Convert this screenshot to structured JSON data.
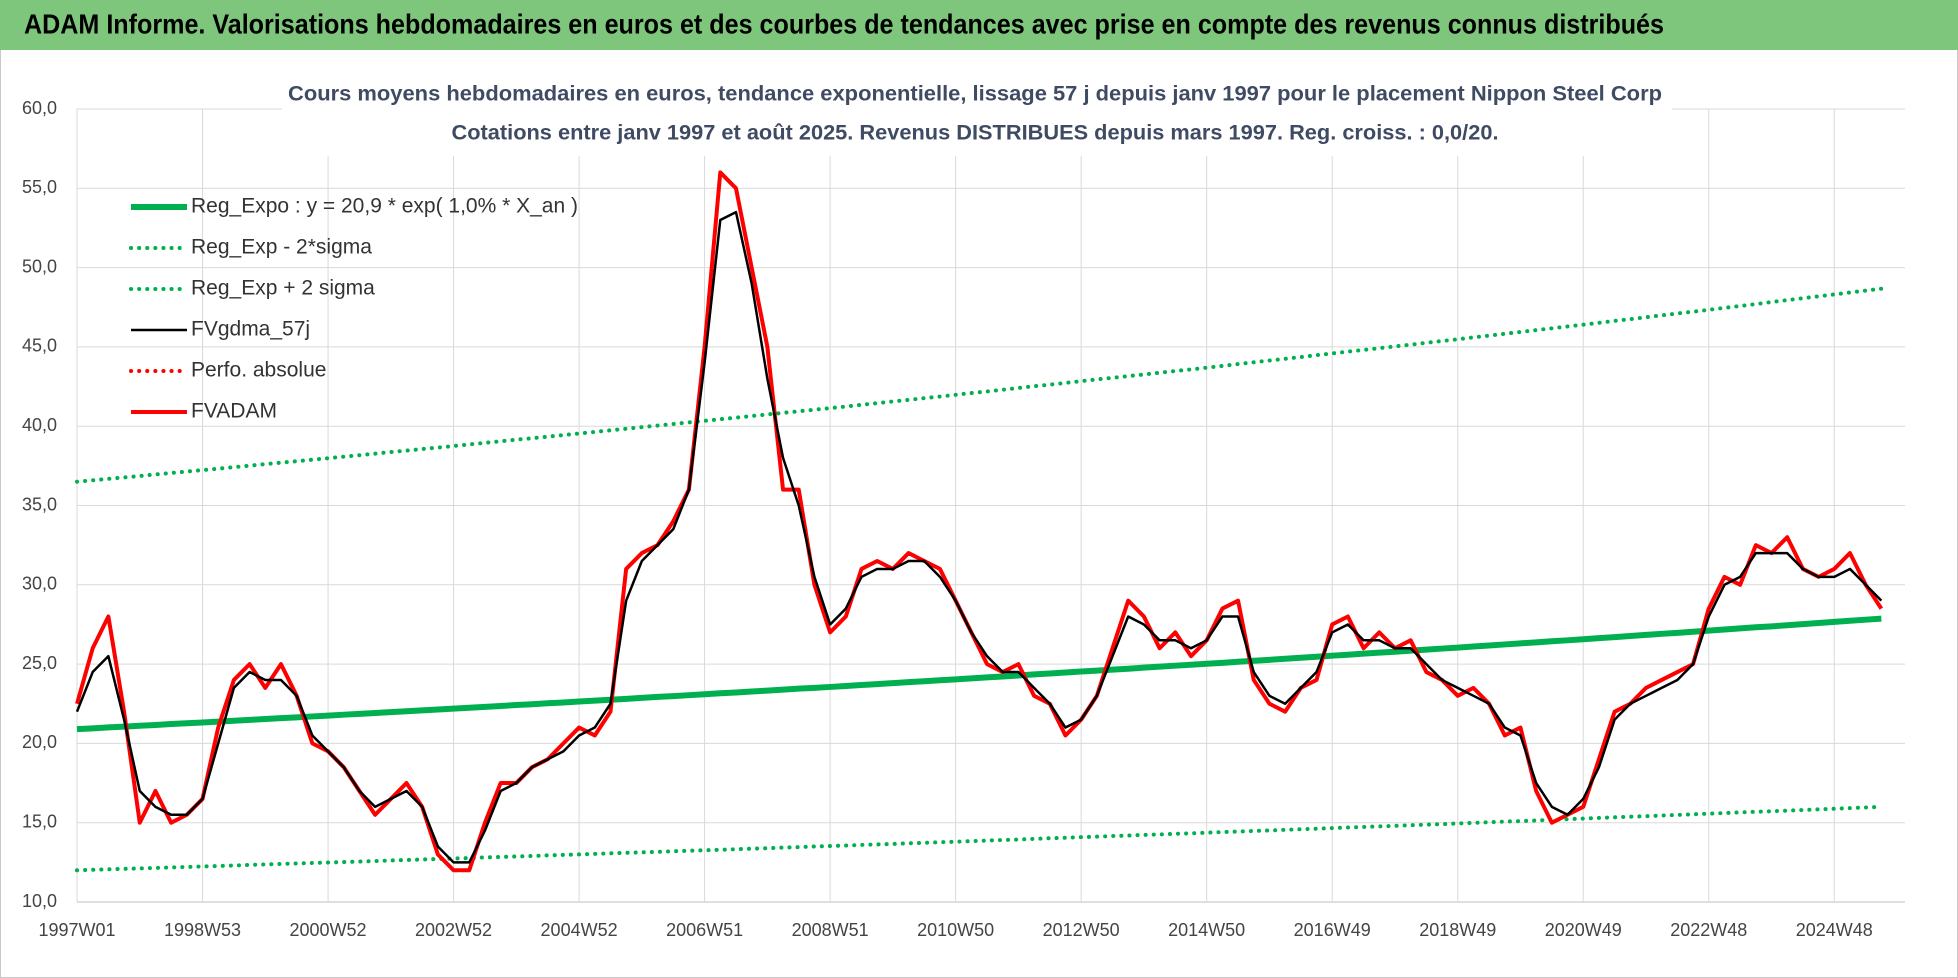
{
  "chart_data": {
    "type": "line",
    "header": "ADAM Informe. Valorisations hebdomadaires en euros et des courbes de tendances avec prise en compte des revenus connus distribués",
    "title": "Cours moyens hebdomadaires en euros, tendance exponentielle, lissage 57 j depuis janv 1997 pour le placement Nippon Steel Corp",
    "subtitle": "Cotations entre janv 1997 et août 2025.  Revenus DISTRIBUES depuis mars 1997. Reg. croiss. : 0,0/20.",
    "grid": true,
    "ylim": [
      10,
      60
    ],
    "yticks": [
      {
        "value": 10,
        "label": "10,0"
      },
      {
        "value": 15,
        "label": "15,0"
      },
      {
        "value": 20,
        "label": "20,0"
      },
      {
        "value": 25,
        "label": "25,0"
      },
      {
        "value": 30,
        "label": "30,0"
      },
      {
        "value": 35,
        "label": "35,0"
      },
      {
        "value": 40,
        "label": "40,0"
      },
      {
        "value": 45,
        "label": "45,0"
      },
      {
        "value": 50,
        "label": "50,0"
      },
      {
        "value": 55,
        "label": "55,0"
      },
      {
        "value": 60,
        "label": "60,0"
      }
    ],
    "categories": [
      "1997W01",
      null,
      null,
      null,
      null,
      null,
      null,
      null,
      "1998W53",
      null,
      null,
      null,
      null,
      null,
      null,
      null,
      "2000W52",
      null,
      null,
      null,
      null,
      null,
      null,
      null,
      "2002W52",
      null,
      null,
      null,
      null,
      null,
      null,
      null,
      "2004W52",
      null,
      null,
      null,
      null,
      null,
      null,
      null,
      "2006W51",
      null,
      null,
      null,
      null,
      null,
      null,
      null,
      "2008W51",
      null,
      null,
      null,
      null,
      null,
      null,
      null,
      "2010W50",
      null,
      null,
      null,
      null,
      null,
      null,
      null,
      "2012W50",
      null,
      null,
      null,
      null,
      null,
      null,
      null,
      "2014W50",
      null,
      null,
      null,
      null,
      null,
      null,
      null,
      "2016W49",
      null,
      null,
      null,
      null,
      null,
      null,
      null,
      "2018W49",
      null,
      null,
      null,
      null,
      null,
      null,
      null,
      "2020W49",
      null,
      null,
      null,
      null,
      null,
      null,
      null,
      "2022W48",
      null,
      null,
      null,
      null,
      null,
      null,
      null,
      "2024W48",
      null,
      null,
      null
    ],
    "series": [
      {
        "name": "Reg_Expo : y = 20,9 * exp( 1,0% *  X_an )",
        "color": "#00b050",
        "line_style": "solid",
        "values": [
          20.9,
          20.95,
          21.01,
          21.06,
          21.11,
          21.16,
          21.22,
          21.27,
          21.32,
          21.37,
          21.43,
          21.48,
          21.54,
          21.59,
          21.64,
          21.7,
          21.75,
          21.81,
          21.86,
          21.92,
          21.97,
          22.03,
          22.08,
          22.14,
          22.19,
          22.25,
          22.3,
          22.36,
          22.42,
          22.47,
          22.53,
          22.58,
          22.64,
          22.7,
          22.75,
          22.81,
          22.87,
          22.93,
          22.98,
          23.04,
          23.1,
          23.16,
          23.21,
          23.27,
          23.33,
          23.39,
          23.45,
          23.5,
          23.56,
          23.62,
          23.68,
          23.74,
          23.8,
          23.86,
          23.92,
          23.98,
          24.04,
          24.1,
          24.16,
          24.22,
          24.28,
          24.35,
          24.41,
          24.47,
          24.53,
          24.59,
          24.65,
          24.71,
          24.78,
          24.84,
          24.9,
          24.96,
          25.02,
          25.08,
          25.15,
          25.21,
          25.27,
          25.34,
          25.4,
          25.46,
          25.53,
          25.59,
          25.66,
          25.72,
          25.78,
          25.85,
          25.91,
          25.98,
          26.04,
          26.11,
          26.17,
          26.24,
          26.31,
          26.37,
          26.44,
          26.5,
          26.57,
          26.64,
          26.7,
          26.77,
          26.84,
          26.91,
          26.97,
          27.04,
          27.11,
          27.18,
          27.25,
          27.32,
          27.38,
          27.45,
          27.52,
          27.59,
          27.66,
          27.73,
          27.8,
          27.87
        ]
      },
      {
        "name": "Reg_Exp - 2*sigma",
        "color": "#00b050",
        "line_style": "dotted",
        "values": [
          12.0,
          12.03,
          12.06,
          12.09,
          12.12,
          12.15,
          12.18,
          12.21,
          12.24,
          12.27,
          12.3,
          12.34,
          12.37,
          12.4,
          12.43,
          12.46,
          12.49,
          12.52,
          12.55,
          12.58,
          12.62,
          12.65,
          12.68,
          12.71,
          12.74,
          12.77,
          12.81,
          12.84,
          12.87,
          12.9,
          12.94,
          12.97,
          13.0,
          13.03,
          13.07,
          13.1,
          13.13,
          13.16,
          13.2,
          13.23,
          13.26,
          13.29,
          13.33,
          13.36,
          13.39,
          13.43,
          13.46,
          13.5,
          13.53,
          13.56,
          13.6,
          13.63,
          13.66,
          13.7,
          13.73,
          13.77,
          13.8,
          13.84,
          13.87,
          13.91,
          13.94,
          13.98,
          14.02,
          14.05,
          14.09,
          14.12,
          14.16,
          14.19,
          14.23,
          14.26,
          14.3,
          14.33,
          14.37,
          14.41,
          14.44,
          14.48,
          14.51,
          14.55,
          14.59,
          14.62,
          14.66,
          14.7,
          14.73,
          14.77,
          14.8,
          14.84,
          14.88,
          14.91,
          14.95,
          14.99,
          15.03,
          15.07,
          15.1,
          15.14,
          15.18,
          15.22,
          15.26,
          15.3,
          15.34,
          15.38,
          15.41,
          15.45,
          15.49,
          15.53,
          15.57,
          15.61,
          15.65,
          15.69,
          15.72,
          15.76,
          15.8,
          15.84,
          15.88,
          15.92,
          15.96,
          16.0
        ]
      },
      {
        "name": "Reg_Exp + 2 sigma",
        "color": "#00b050",
        "line_style": "dotted",
        "values": [
          36.5,
          36.59,
          36.68,
          36.77,
          36.86,
          36.96,
          37.05,
          37.14,
          37.23,
          37.32,
          37.42,
          37.51,
          37.61,
          37.7,
          37.79,
          37.89,
          37.98,
          38.08,
          38.17,
          38.27,
          38.37,
          38.46,
          38.56,
          38.65,
          38.75,
          38.85,
          38.95,
          39.05,
          39.15,
          39.24,
          39.34,
          39.44,
          39.54,
          39.64,
          39.74,
          39.84,
          39.94,
          40.04,
          40.14,
          40.24,
          40.34,
          40.44,
          40.54,
          40.64,
          40.74,
          40.84,
          40.94,
          41.04,
          41.14,
          41.24,
          41.35,
          41.45,
          41.56,
          41.66,
          41.77,
          41.87,
          41.98,
          42.09,
          42.19,
          42.3,
          42.41,
          42.52,
          42.62,
          42.73,
          42.84,
          42.95,
          43.05,
          43.16,
          43.26,
          43.37,
          43.48,
          43.58,
          43.69,
          43.8,
          43.92,
          44.03,
          44.14,
          44.25,
          44.36,
          44.48,
          44.59,
          44.7,
          44.81,
          44.92,
          45.03,
          45.14,
          45.26,
          45.37,
          45.48,
          45.6,
          45.71,
          45.83,
          45.94,
          46.06,
          46.17,
          46.29,
          46.4,
          46.52,
          46.64,
          46.75,
          46.87,
          46.99,
          47.11,
          47.22,
          47.34,
          47.46,
          47.58,
          47.7,
          47.83,
          47.95,
          48.07,
          48.19,
          48.31,
          48.43,
          48.55,
          48.67
        ]
      },
      {
        "name": "FVgdma_57j",
        "color": "#000000",
        "line_style": "solid",
        "values": [
          22,
          24.5,
          25.5,
          21.5,
          17,
          16,
          15.5,
          15.5,
          16.5,
          20,
          23.5,
          24.5,
          24,
          24,
          23,
          20.5,
          19.5,
          18.5,
          17,
          16,
          16.5,
          17,
          16,
          13.5,
          12.5,
          12.5,
          14.5,
          17,
          17.5,
          18.5,
          19,
          19.5,
          20.5,
          21,
          22.5,
          29,
          31.5,
          32.5,
          33.5,
          36,
          44,
          53,
          53.5,
          49,
          43,
          38,
          35,
          30.5,
          27.5,
          28.5,
          30.5,
          31,
          31,
          31.5,
          31.5,
          30.5,
          29,
          27,
          25.5,
          24.5,
          24.5,
          23.5,
          22.5,
          21,
          21.5,
          23,
          25.5,
          28,
          27.5,
          26.5,
          26.5,
          26,
          26.5,
          28,
          28,
          24.5,
          23,
          22.5,
          23.5,
          24.5,
          27,
          27.5,
          26.5,
          26.5,
          26,
          26,
          25,
          24,
          23.5,
          23,
          22.5,
          21,
          20.5,
          17.5,
          16,
          15.5,
          16.5,
          18.5,
          21.5,
          22.5,
          23,
          23.5,
          24,
          25,
          28,
          30,
          30.5,
          32,
          32,
          32,
          31,
          30.5,
          30.5,
          31,
          30,
          29
        ]
      },
      {
        "name": "Perfo. absolue",
        "color": "#ff0000",
        "line_style": "dotted",
        "values": [
          null,
          null,
          null,
          null,
          null,
          null,
          null,
          null,
          null,
          null,
          null,
          null,
          null,
          null,
          null,
          null,
          null,
          null,
          null,
          null,
          null,
          null,
          null,
          null,
          null,
          null,
          null,
          null,
          null,
          null,
          null,
          null,
          null,
          null,
          null,
          null,
          null,
          null,
          null,
          null,
          null,
          null,
          null,
          null,
          null,
          null,
          null,
          null,
          null,
          null,
          null,
          null,
          null,
          null,
          null,
          null,
          null,
          null,
          null,
          null,
          null,
          null,
          null,
          null,
          null,
          null,
          null,
          null,
          null,
          null,
          null,
          null,
          null,
          null,
          null,
          null,
          null,
          null,
          null,
          null,
          null,
          null,
          null,
          null,
          null,
          null,
          null,
          null,
          null,
          null,
          null,
          null,
          null,
          null,
          null,
          null,
          null,
          null,
          null,
          null,
          null,
          null,
          null,
          null,
          null,
          null,
          null,
          null,
          null,
          null,
          null,
          null,
          null,
          null,
          null,
          null
        ]
      },
      {
        "name": "FVADAM",
        "color": "#ff0000",
        "line_style": "solid",
        "values": [
          22.5,
          26,
          28,
          22,
          15,
          17,
          15,
          15.5,
          16.5,
          21,
          24,
          25,
          23.5,
          25,
          23,
          20,
          19.5,
          18.5,
          17,
          15.5,
          16.5,
          17.5,
          16,
          13,
          12,
          12,
          15,
          17.5,
          17.5,
          18.5,
          19,
          20,
          21,
          20.5,
          22,
          31,
          32,
          32.5,
          34,
          36,
          45,
          56,
          55,
          50,
          45,
          36,
          36,
          30,
          27,
          28,
          31,
          31.5,
          31,
          32,
          31.5,
          31,
          29,
          27,
          25,
          24.5,
          25,
          23,
          22.5,
          20.5,
          21.5,
          23,
          26,
          29,
          28,
          26,
          27,
          25.5,
          26.5,
          28.5,
          29,
          24,
          22.5,
          22,
          23.5,
          24,
          27.5,
          28,
          26,
          27,
          26,
          26.5,
          24.5,
          24,
          23,
          23.5,
          22.5,
          20.5,
          21,
          17,
          15,
          15.5,
          16,
          19,
          22,
          22.5,
          23.5,
          24,
          24.5,
          25,
          28.5,
          30.5,
          30,
          32.5,
          32,
          33,
          31,
          30.5,
          31,
          32,
          30,
          28.5
        ]
      }
    ]
  }
}
